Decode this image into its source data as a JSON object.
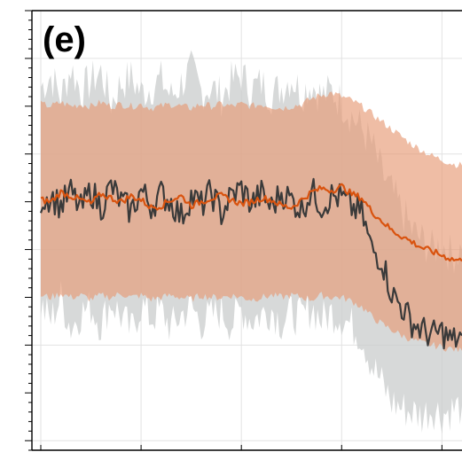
{
  "chart_data": {
    "type": "line",
    "panel_label": "(e)",
    "x_range": [
      0,
      210
    ],
    "y_range": [
      -1.3,
      1.0
    ],
    "grid": true,
    "legend": "none",
    "colors": {
      "observed_line": "#3a3a3a",
      "observed_band": "#c9cccc",
      "model_line": "#d9530f",
      "model_band": "#e79a75"
    },
    "series": [
      {
        "role": "observed",
        "line_color": "#3a3a3a",
        "band_color": "#c9cccc",
        "band_opacity": 0.75,
        "x": [
          0,
          5,
          10,
          15,
          20,
          25,
          30,
          35,
          40,
          45,
          50,
          55,
          60,
          65,
          70,
          75,
          80,
          85,
          90,
          95,
          100,
          105,
          110,
          115,
          120,
          125,
          130,
          135,
          140,
          145,
          150,
          155,
          160,
          165,
          170,
          175,
          180,
          185,
          190,
          195,
          200,
          205,
          210
        ],
        "mean": [
          0.01,
          0.03,
          -0.02,
          0.05,
          -0.04,
          0.06,
          -0.03,
          0.08,
          0.0,
          -0.05,
          0.06,
          -0.02,
          0.04,
          0.0,
          -0.08,
          0.03,
          -0.02,
          0.05,
          -0.06,
          0.03,
          0.07,
          -0.01,
          0.04,
          -0.03,
          0.05,
          0.01,
          -0.04,
          0.06,
          -0.02,
          0.03,
          0.02,
          -0.03,
          -0.06,
          -0.25,
          -0.3,
          -0.48,
          -0.55,
          -0.63,
          -0.67,
          -0.7,
          -0.68,
          -0.73,
          -0.7
        ],
        "band_low": [
          -0.55,
          -0.62,
          -0.5,
          -0.66,
          -0.58,
          -0.55,
          -0.64,
          -0.52,
          -0.6,
          -0.68,
          -0.54,
          -0.61,
          -0.57,
          -0.66,
          -0.59,
          -0.55,
          -0.63,
          -0.6,
          -0.57,
          -0.64,
          -0.56,
          -0.62,
          -0.59,
          -0.56,
          -0.63,
          -0.58,
          -0.61,
          -0.55,
          -0.62,
          -0.58,
          -0.6,
          -0.65,
          -0.7,
          -0.85,
          -0.95,
          -1.05,
          -1.08,
          -1.1,
          -1.12,
          -1.08,
          -1.11,
          -1.09,
          -1.07
        ],
        "band_high": [
          0.6,
          0.66,
          0.55,
          0.7,
          0.58,
          0.63,
          0.68,
          0.52,
          0.62,
          0.65,
          0.57,
          0.6,
          0.64,
          0.55,
          0.62,
          0.69,
          0.58,
          0.6,
          0.55,
          0.63,
          0.66,
          0.59,
          0.62,
          0.56,
          0.6,
          0.65,
          0.57,
          0.62,
          0.55,
          0.58,
          0.52,
          0.45,
          0.38,
          0.3,
          0.15,
          0.05,
          -0.05,
          -0.15,
          -0.2,
          -0.25,
          -0.22,
          -0.28,
          -0.25
        ]
      },
      {
        "role": "model",
        "line_color": "#d9530f",
        "band_color": "#e79a75",
        "band_opacity": 0.65,
        "x": [
          0,
          5,
          10,
          15,
          20,
          25,
          30,
          35,
          40,
          45,
          50,
          55,
          60,
          65,
          70,
          75,
          80,
          85,
          90,
          95,
          100,
          105,
          110,
          115,
          120,
          125,
          130,
          135,
          140,
          145,
          150,
          155,
          160,
          165,
          170,
          175,
          180,
          185,
          190,
          195,
          200,
          205,
          210
        ],
        "mean": [
          0.01,
          0.0,
          0.05,
          0.03,
          0.01,
          -0.01,
          0.04,
          0.02,
          0.0,
          0.03,
          0.01,
          -0.03,
          -0.02,
          0.01,
          0.03,
          -0.02,
          0.0,
          0.02,
          0.03,
          0.01,
          -0.01,
          0.0,
          0.02,
          0.01,
          -0.02,
          -0.03,
          0.01,
          0.05,
          0.07,
          0.06,
          0.08,
          0.04,
          0.02,
          -0.05,
          -0.1,
          -0.15,
          -0.18,
          -0.21,
          -0.24,
          -0.26,
          -0.28,
          -0.3,
          -0.31
        ],
        "band_low": [
          -0.49,
          -0.5,
          -0.48,
          -0.5,
          -0.49,
          -0.51,
          -0.49,
          -0.5,
          -0.48,
          -0.5,
          -0.49,
          -0.51,
          -0.5,
          -0.49,
          -0.5,
          -0.51,
          -0.49,
          -0.5,
          -0.5,
          -0.49,
          -0.5,
          -0.51,
          -0.5,
          -0.49,
          -0.5,
          -0.49,
          -0.5,
          -0.51,
          -0.49,
          -0.5,
          -0.5,
          -0.52,
          -0.55,
          -0.6,
          -0.64,
          -0.67,
          -0.7,
          -0.72,
          -0.74,
          -0.75,
          -0.76,
          -0.77,
          -0.78
        ],
        "band_high": [
          0.51,
          0.5,
          0.52,
          0.5,
          0.51,
          0.5,
          0.52,
          0.5,
          0.51,
          0.5,
          0.51,
          0.49,
          0.5,
          0.51,
          0.5,
          0.49,
          0.51,
          0.5,
          0.51,
          0.5,
          0.51,
          0.5,
          0.51,
          0.5,
          0.49,
          0.5,
          0.51,
          0.54,
          0.56,
          0.57,
          0.55,
          0.53,
          0.5,
          0.46,
          0.42,
          0.38,
          0.34,
          0.3,
          0.27,
          0.24,
          0.22,
          0.2,
          0.19
        ]
      }
    ],
    "overlap_band_color": "#c99a86"
  }
}
